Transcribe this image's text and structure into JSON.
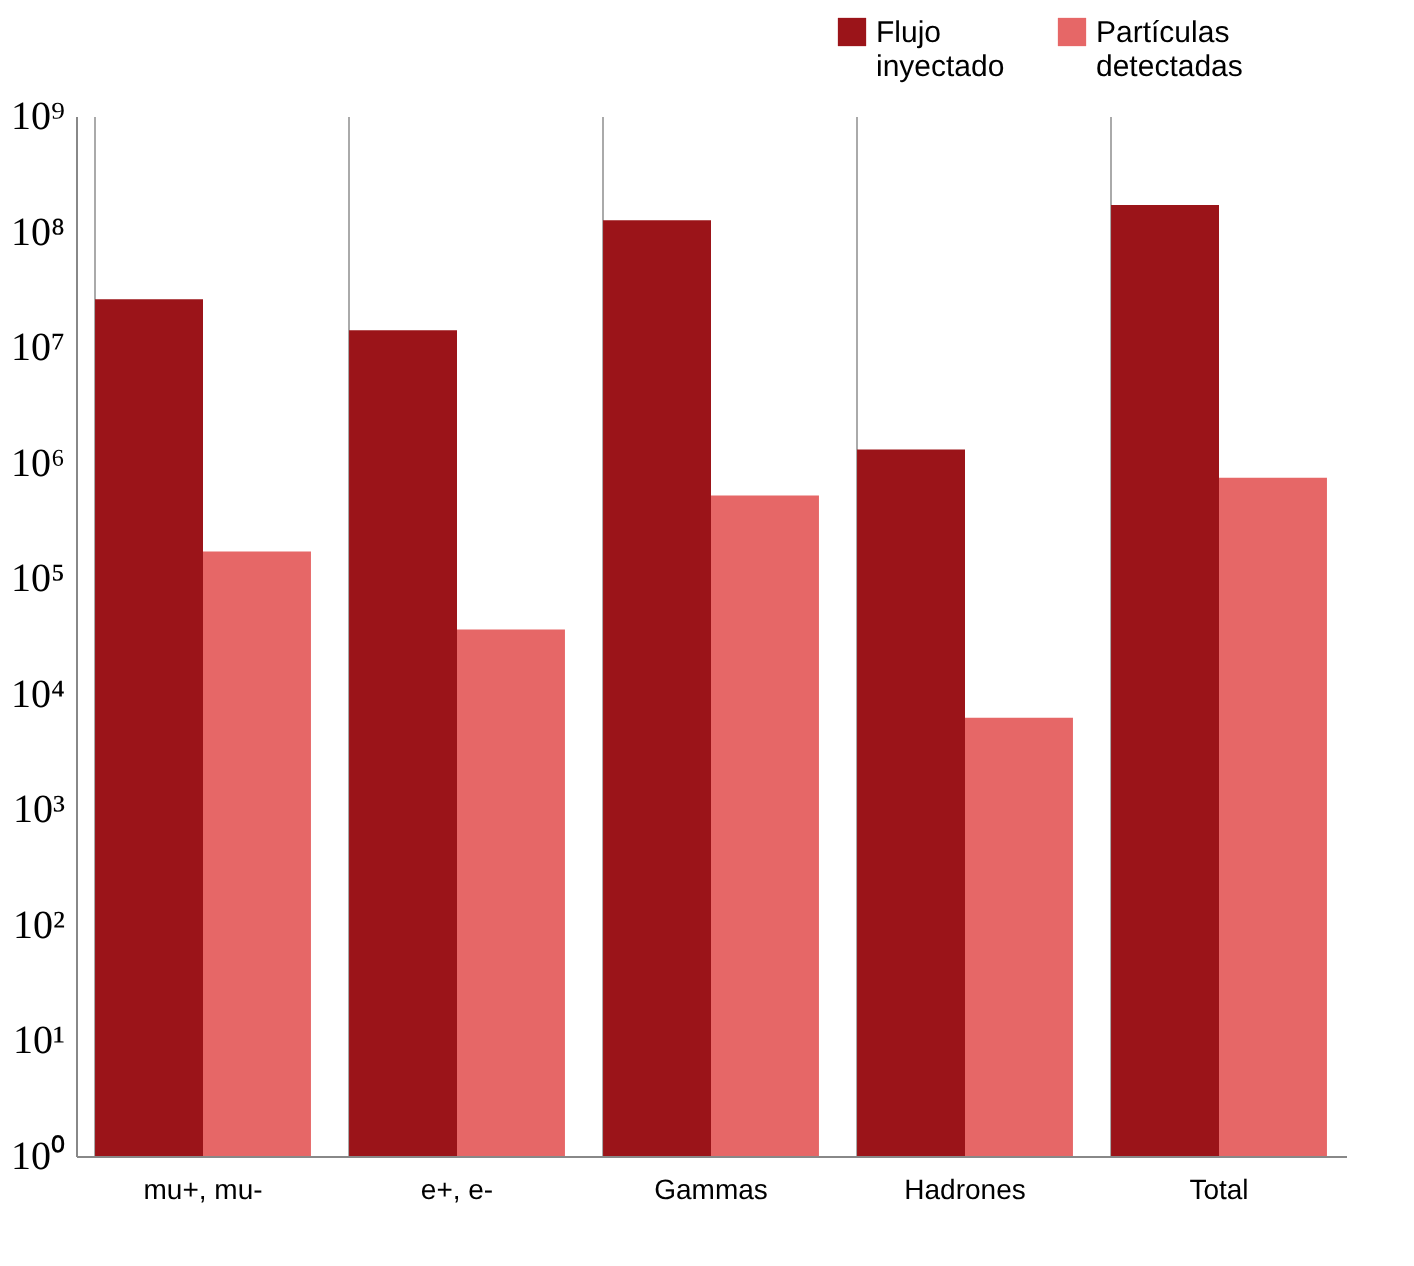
{
  "chart_data": {
    "type": "bar",
    "categories": [
      "mu+, mu-",
      "e+, e-",
      "Gammas",
      "Hadrones",
      "Total"
    ],
    "series": [
      {
        "name": "Flujo inyectado",
        "color": "#9b1419",
        "values": [
          26000000,
          14000000,
          125000000,
          1300000,
          170000000
        ]
      },
      {
        "name": "Partículas detectadas",
        "color": "#e66767",
        "values": [
          170000,
          36000,
          520000,
          6200,
          740000
        ]
      }
    ],
    "log": true,
    "ylim": [
      1,
      1000000000
    ],
    "yticks": [
      {
        "value": 1,
        "label": "10⁰"
      },
      {
        "value": 10,
        "label": "10¹"
      },
      {
        "value": 100,
        "label": "10²"
      },
      {
        "value": 1000,
        "label": "10³"
      },
      {
        "value": 10000,
        "label": "10⁴"
      },
      {
        "value": 100000,
        "label": "10⁵"
      },
      {
        "value": 1000000,
        "label": "10⁶"
      },
      {
        "value": 10000000,
        "label": "10⁷"
      },
      {
        "value": 100000000,
        "label": "10⁸"
      },
      {
        "value": 1000000000,
        "label": "10⁹"
      }
    ],
    "grid": "x",
    "legend": "top right"
  }
}
